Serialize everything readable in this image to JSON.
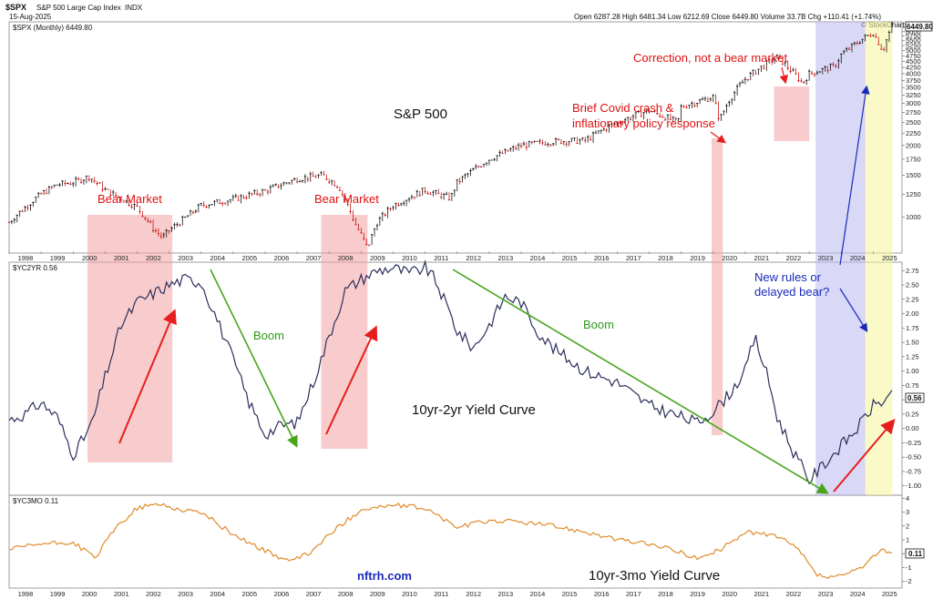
{
  "header": {
    "symbol": "$SPX",
    "name": "S&P 500 Large Cap Index",
    "exchange": "INDX",
    "date": "15-Aug-2025",
    "ohlc": "Open 6287.28  High 6481.34  Low 6212.69  Close 6449.80  Volume 33.7B  Chg +110.41 (+1.74%)",
    "credit": "© StockCharts.com",
    "last_value": "6449.80"
  },
  "colors": {
    "spx_up": "#111111",
    "spx_down": "#cc1111",
    "yc2yr_line": "#2b2f5a",
    "yc3mo_line": "#e08a2a",
    "red_zone": "#f2a3a3",
    "blue_zone": "#b9b8f0",
    "yellow_zone": "#f4f59a",
    "arrow_red": "#e61e1e",
    "arrow_green": "#49a51c",
    "arrow_blue": "#1a2ab8"
  },
  "annotations": {
    "sp500": "S&P 500",
    "bear1": "Bear Market",
    "bear2": "Bear Market",
    "covid1": "Brief Covid crash &",
    "covid2": "inflationary policy response",
    "correction": "Correction, not a bear market",
    "boom1": "Boom",
    "boom2": "Boom",
    "yc2_title": "10yr-2yr Yield Curve",
    "newrules1": "New rules or",
    "newrules2": "delayed bear?",
    "yc3_title": "10yr-3mo Yield Curve",
    "watermark": "nftrh.com"
  },
  "chart_data": [
    {
      "type": "candlestick",
      "legend": "$SPX (Monthly) 6449.80",
      "scale": "log",
      "x_range": [
        1998,
        2025.9
      ],
      "y_ticks": [
        1000,
        1250,
        1500,
        1750,
        2000,
        2250,
        2500,
        2750,
        3000,
        3250,
        3500,
        3750,
        4000,
        4250,
        4500,
        4750,
        5000,
        5250,
        5500,
        5750,
        6000,
        6250
      ],
      "series": [
        {
          "x": [
            1998,
            1998.5,
            1999,
            1999.5,
            2000,
            2000.5,
            2001,
            2001.5,
            2002,
            2002.5,
            2002.8,
            2003,
            2003.5,
            2004,
            2005,
            2006,
            2007,
            2007.8,
            2008.3,
            2008.8,
            2009.2,
            2009.5,
            2010,
            2011,
            2011.8,
            2012,
            2013,
            2014,
            2015,
            2016,
            2017,
            2018,
            2018.9,
            2019,
            2020,
            2020.2,
            2020.5,
            2021,
            2022,
            2022.8,
            2023,
            2023.8,
            2024,
            2024.5,
            2025,
            2025.3,
            2025.6
          ],
          "y": [
            950,
            1100,
            1250,
            1370,
            1400,
            1480,
            1300,
            1200,
            1100,
            900,
            820,
            880,
            990,
            1120,
            1190,
            1290,
            1450,
            1500,
            1350,
            950,
            740,
            950,
            1120,
            1300,
            1200,
            1400,
            1750,
            2000,
            2080,
            2100,
            2500,
            2800,
            2500,
            2900,
            3200,
            2550,
            3100,
            3800,
            4700,
            3650,
            4000,
            4300,
            4800,
            5400,
            5950,
            5000,
            6400
          ]
        }
      ]
    },
    {
      "type": "line",
      "legend": "$YC2YR 0.56",
      "x_range": [
        1998,
        2025.9
      ],
      "y_ticks": [
        -1.0,
        -0.75,
        -0.5,
        -0.25,
        0.0,
        0.25,
        0.5,
        0.75,
        1.0,
        1.25,
        1.5,
        1.75,
        2.0,
        2.25,
        2.5,
        2.75
      ],
      "last_value": "0.56",
      "series": [
        {
          "x": [
            1998,
            1998.5,
            1999,
            1999.5,
            2000,
            2000.3,
            2000.6,
            2001,
            2001.5,
            2002,
            2002.5,
            2003,
            2003.5,
            2004,
            2004.5,
            2005,
            2005.5,
            2006,
            2006.5,
            2007,
            2007.5,
            2008,
            2008.5,
            2009,
            2009.5,
            2010,
            2010.5,
            2011,
            2011.3,
            2011.7,
            2012,
            2012.5,
            2013,
            2013.5,
            2014,
            2014.5,
            2015,
            2015.5,
            2016,
            2016.5,
            2017,
            2017.5,
            2018,
            2018.5,
            2019,
            2019.5,
            2020,
            2020.5,
            2021,
            2021.3,
            2021.7,
            2022,
            2022.5,
            2023,
            2023.5,
            2024,
            2024.5,
            2025,
            2025.6
          ],
          "y": [
            0.15,
            0.25,
            0.45,
            0.2,
            -0.45,
            -0.2,
            0.1,
            0.9,
            1.8,
            2.2,
            2.35,
            2.5,
            2.6,
            2.55,
            1.9,
            1.2,
            0.45,
            -0.1,
            0.05,
            0.1,
            0.8,
            1.6,
            2.4,
            2.6,
            2.75,
            2.8,
            2.7,
            2.8,
            2.6,
            2.1,
            1.7,
            1.4,
            1.8,
            2.3,
            2.2,
            1.7,
            1.4,
            1.2,
            1.0,
            0.9,
            0.8,
            0.6,
            0.4,
            0.3,
            0.2,
            0.1,
            0.3,
            0.6,
            1.0,
            1.6,
            0.9,
            0.2,
            -0.4,
            -0.9,
            -0.6,
            -0.3,
            0.0,
            0.4,
            0.56
          ]
        }
      ]
    },
    {
      "type": "line",
      "legend": "$YC3MO 0.11",
      "x_range": [
        1998,
        2025.9
      ],
      "y_ticks": [
        -2,
        -1,
        0,
        1,
        2,
        3,
        4
      ],
      "last_value": "0.11",
      "x_tick_labels": [
        "1998",
        "1999",
        "2000",
        "2001",
        "2002",
        "2003",
        "2004",
        "2005",
        "2006",
        "2007",
        "2008",
        "2009",
        "2010",
        "2011",
        "2012",
        "2013",
        "2014",
        "2015",
        "2016",
        "2017",
        "2018",
        "2019",
        "2020",
        "2021",
        "2022",
        "2023",
        "2024",
        "2025"
      ],
      "series": [
        {
          "x": [
            1998,
            1999,
            2000,
            2000.7,
            2001.3,
            2002,
            2002.7,
            2003.3,
            2004,
            2005,
            2006,
            2006.8,
            2007.5,
            2008,
            2009,
            2010,
            2011,
            2012,
            2013,
            2014,
            2015,
            2016,
            2017,
            2018,
            2019,
            2019.6,
            2020.3,
            2021,
            2021.5,
            2022,
            2022.7,
            2023.2,
            2023.7,
            2024.3,
            2024.8,
            2025.2,
            2025.6
          ],
          "y": [
            0.3,
            0.7,
            0.8,
            -0.3,
            1.8,
            3.3,
            3.6,
            3.2,
            3.0,
            1.4,
            0.2,
            -0.6,
            0.2,
            1.4,
            3.2,
            3.5,
            3.3,
            1.9,
            2.4,
            2.3,
            2.0,
            1.6,
            1.0,
            0.7,
            0.1,
            -0.4,
            0.4,
            1.6,
            1.4,
            1.3,
            0.2,
            -1.5,
            -1.8,
            -1.4,
            -0.8,
            0.3,
            0.11
          ]
        }
      ]
    }
  ]
}
